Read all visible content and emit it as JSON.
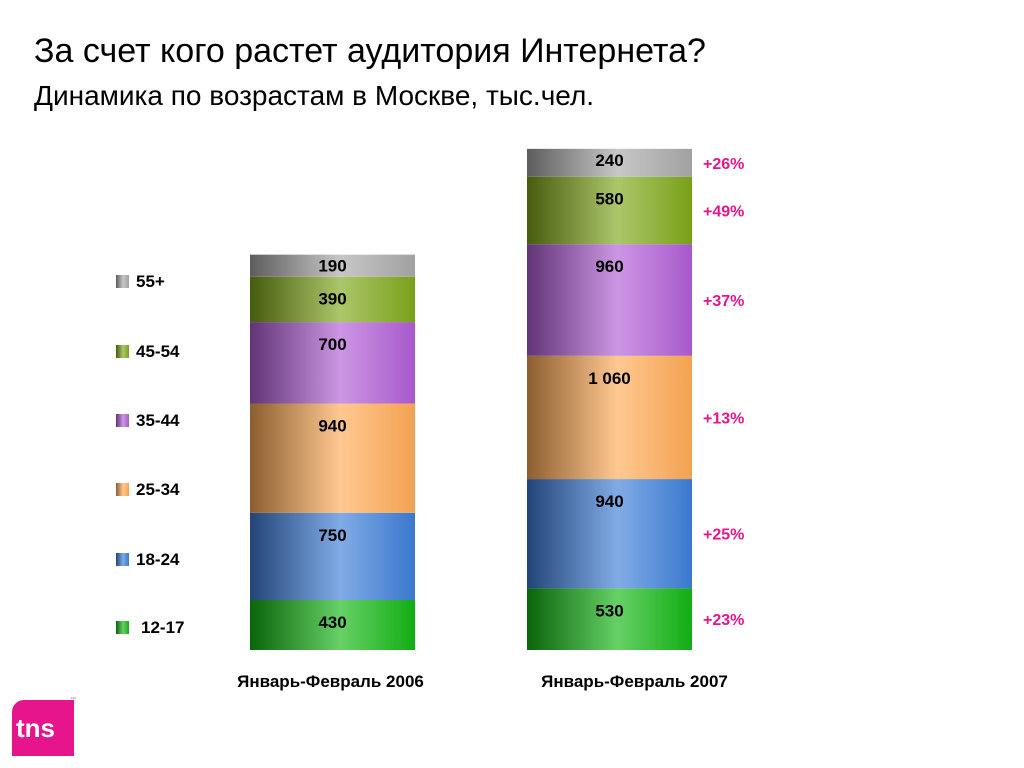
{
  "header": {
    "title": "За счет кого растет аудитория Интернета?",
    "subtitle": "Динамика по возрастам в Москве, тыс.чел."
  },
  "logo": {
    "text": "tns",
    "tm": "™"
  },
  "chart_data": {
    "type": "bar",
    "stacked": true,
    "categories": [
      "Январь-Февраль 2006",
      "Январь-Февраль 2007"
    ],
    "series": [
      {
        "name": "12-17",
        "color": "#13b613",
        "values": [
          430,
          530
        ],
        "labels": [
          "430",
          "530"
        ],
        "growth": "+23%"
      },
      {
        "name": "18-24",
        "color": "#3d7ed8",
        "values": [
          750,
          940
        ],
        "labels": [
          "750",
          "940"
        ],
        "growth": "+25%"
      },
      {
        "name": "25-34",
        "color": "#ffab55",
        "values": [
          940,
          1060
        ],
        "labels": [
          "940",
          "1 060"
        ],
        "growth": "+13%"
      },
      {
        "name": "35-44",
        "color": "#b05ed6",
        "values": [
          700,
          960
        ],
        "labels": [
          "700",
          "960"
        ],
        "growth": "+37%"
      },
      {
        "name": "45-54",
        "color": "#7fa81a",
        "values": [
          390,
          580
        ],
        "labels": [
          "390",
          "580"
        ],
        "growth": "+49%"
      },
      {
        "name": "55+",
        "color": "#a9a9a9",
        "values": [
          190,
          240
        ],
        "labels": [
          "190",
          "240"
        ],
        "growth": "+26%"
      }
    ],
    "legend_position": "left",
    "legend_order": [
      "55+",
      "45-54",
      "35-44",
      "25-34",
      "18-24",
      "12-17"
    ],
    "ylim": [
      0,
      4300
    ],
    "grid": false,
    "xlabel": "",
    "ylabel": ""
  }
}
